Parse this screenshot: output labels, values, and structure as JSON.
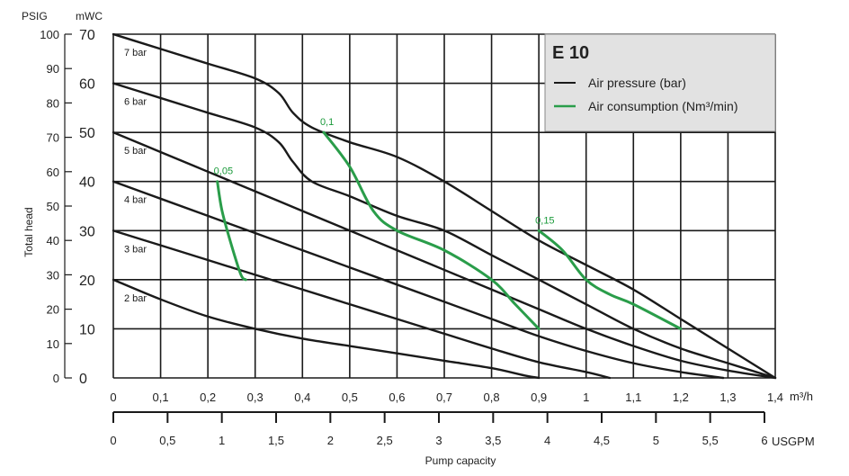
{
  "chart_data": {
    "type": "line",
    "title": "E 10",
    "xlabel": "Pump capacity",
    "ylabel": "Total head",
    "x_unit_label": "m³/h",
    "x2_unit_label": "USGPM",
    "y_left_unit_label": "PSIG",
    "y_right_unit_label": "mWC",
    "xlim": [
      0,
      1.4
    ],
    "ylim": [
      0,
      70
    ],
    "x_ticks": [
      "0",
      "0,1",
      "0,2",
      "0,3",
      "0,4",
      "0,5",
      "0,6",
      "0,7",
      "0,8",
      "0,9",
      "1",
      "1,1",
      "1,2",
      "1,3",
      "1,4"
    ],
    "x2_ticks": [
      "0",
      "0,5",
      "1",
      "1,5",
      "2",
      "2,5",
      "3",
      "3,5",
      "4",
      "4,5",
      "5",
      "5,5",
      "6"
    ],
    "y_mwc_ticks": [
      "0",
      "10",
      "20",
      "30",
      "40",
      "50",
      "60",
      "70"
    ],
    "y_psig_ticks": [
      "0",
      "10",
      "20",
      "30",
      "40",
      "50",
      "60",
      "70",
      "80",
      "90",
      "100"
    ],
    "grid": true,
    "legend": {
      "position": "top-right",
      "entries": [
        {
          "label": "Air pressure (bar)",
          "color": "#1a1a1a"
        },
        {
          "label": "Air consumption (Nm³/min)",
          "color": "#2a9d4a"
        }
      ]
    },
    "series": [
      {
        "name": "7 bar",
        "kind": "pressure",
        "color": "#1a1a1a",
        "points": [
          [
            0,
            70
          ],
          [
            0.1,
            67
          ],
          [
            0.2,
            64
          ],
          [
            0.3,
            61
          ],
          [
            0.35,
            58
          ],
          [
            0.38,
            54
          ],
          [
            0.42,
            51
          ],
          [
            0.5,
            48
          ],
          [
            0.6,
            45
          ],
          [
            0.7,
            40
          ],
          [
            0.8,
            34
          ],
          [
            0.9,
            28
          ],
          [
            1.0,
            23
          ],
          [
            1.1,
            18
          ],
          [
            1.2,
            12
          ],
          [
            1.3,
            6
          ],
          [
            1.4,
            0
          ]
        ]
      },
      {
        "name": "6 bar",
        "kind": "pressure",
        "color": "#1a1a1a",
        "points": [
          [
            0,
            60
          ],
          [
            0.1,
            57
          ],
          [
            0.2,
            54
          ],
          [
            0.3,
            51
          ],
          [
            0.35,
            48
          ],
          [
            0.38,
            44
          ],
          [
            0.42,
            40
          ],
          [
            0.5,
            37
          ],
          [
            0.6,
            33
          ],
          [
            0.7,
            30
          ],
          [
            0.8,
            25
          ],
          [
            0.9,
            20
          ],
          [
            1.0,
            15
          ],
          [
            1.1,
            10
          ],
          [
            1.2,
            6
          ],
          [
            1.3,
            3
          ],
          [
            1.4,
            0
          ]
        ]
      },
      {
        "name": "5 bar",
        "kind": "pressure",
        "color": "#1a1a1a",
        "points": [
          [
            0,
            50
          ],
          [
            0.1,
            46
          ],
          [
            0.2,
            42
          ],
          [
            0.3,
            38
          ],
          [
            0.4,
            34
          ],
          [
            0.5,
            30
          ],
          [
            0.6,
            26
          ],
          [
            0.7,
            22
          ],
          [
            0.8,
            18
          ],
          [
            0.9,
            14
          ],
          [
            1.0,
            10
          ],
          [
            1.1,
            6.5
          ],
          [
            1.2,
            3.5
          ],
          [
            1.3,
            1.5
          ],
          [
            1.4,
            0
          ]
        ]
      },
      {
        "name": "4 bar",
        "kind": "pressure",
        "color": "#1a1a1a",
        "points": [
          [
            0,
            40
          ],
          [
            0.1,
            36.5
          ],
          [
            0.2,
            33
          ],
          [
            0.3,
            29.5
          ],
          [
            0.4,
            26
          ],
          [
            0.5,
            22.5
          ],
          [
            0.6,
            19
          ],
          [
            0.7,
            15.5
          ],
          [
            0.8,
            12
          ],
          [
            0.9,
            8.5
          ],
          [
            1.0,
            5.5
          ],
          [
            1.1,
            3
          ],
          [
            1.2,
            1.2
          ],
          [
            1.29,
            0
          ]
        ]
      },
      {
        "name": "3 bar",
        "kind": "pressure",
        "color": "#1a1a1a",
        "points": [
          [
            0,
            30
          ],
          [
            0.1,
            27
          ],
          [
            0.2,
            24
          ],
          [
            0.3,
            21
          ],
          [
            0.4,
            18
          ],
          [
            0.5,
            15
          ],
          [
            0.6,
            12
          ],
          [
            0.7,
            9
          ],
          [
            0.8,
            6
          ],
          [
            0.9,
            3.2
          ],
          [
            1.0,
            1.2
          ],
          [
            1.05,
            0
          ]
        ]
      },
      {
        "name": "2 bar",
        "kind": "pressure",
        "color": "#1a1a1a",
        "points": [
          [
            0,
            20
          ],
          [
            0.1,
            16
          ],
          [
            0.2,
            12.5
          ],
          [
            0.3,
            10
          ],
          [
            0.4,
            8
          ],
          [
            0.5,
            6.5
          ],
          [
            0.6,
            5
          ],
          [
            0.7,
            3.5
          ],
          [
            0.8,
            2
          ],
          [
            0.87,
            0.5
          ],
          [
            0.9,
            0
          ]
        ]
      },
      {
        "name": "0,05",
        "kind": "consumption",
        "color": "#2a9d4a",
        "points": [
          [
            0.22,
            40
          ],
          [
            0.23,
            34
          ],
          [
            0.25,
            27
          ],
          [
            0.27,
            21
          ],
          [
            0.28,
            20
          ]
        ]
      },
      {
        "name": "0,1",
        "kind": "consumption",
        "color": "#2a9d4a",
        "points": [
          [
            0.445,
            50
          ],
          [
            0.5,
            43
          ],
          [
            0.55,
            34
          ],
          [
            0.6,
            30
          ],
          [
            0.7,
            26
          ],
          [
            0.8,
            20
          ],
          [
            0.85,
            15
          ],
          [
            0.9,
            10
          ]
        ]
      },
      {
        "name": "0,15",
        "kind": "consumption",
        "color": "#2a9d4a",
        "points": [
          [
            0.9,
            30
          ],
          [
            0.95,
            26
          ],
          [
            1.0,
            20
          ],
          [
            1.05,
            17
          ],
          [
            1.1,
            15
          ],
          [
            1.2,
            10
          ]
        ]
      }
    ]
  }
}
